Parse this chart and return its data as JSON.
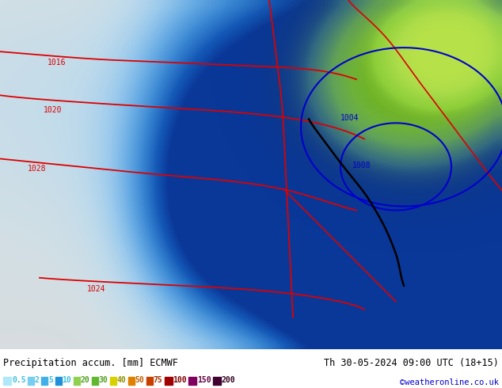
{
  "title_left": "Precipitation accum. [mm] ECMWF",
  "title_right": "Th 30-05-2024 09:00 UTC (18+15)",
  "credit": "©weatheronline.co.uk",
  "legend_values": [
    "0.5",
    "2",
    "5",
    "10",
    "20",
    "30",
    "40",
    "50",
    "75",
    "100",
    "150",
    "200"
  ],
  "legend_colors": [
    "#b0e8fa",
    "#78cef0",
    "#40b0e8",
    "#2090d8",
    "#90d050",
    "#60b830",
    "#d8d000",
    "#e08000",
    "#c84000",
    "#a00000",
    "#800060",
    "#400030"
  ],
  "legend_text_colors": [
    "#40c0e0",
    "#40c0e0",
    "#40c0e0",
    "#40c0e0",
    "#50a020",
    "#50a020",
    "#909000",
    "#c06000",
    "#a03000",
    "#800000",
    "#600040",
    "#300020"
  ],
  "figsize": [
    6.34,
    4.9
  ],
  "dpi": 100,
  "bottom_bar_bg": "#ffffff",
  "map_bg": "#d0d0d0",
  "land_color": "#d8d8d8",
  "sea_color": "#c8d8e8",
  "red_contour": "#dd0000",
  "blue_contour": "#0000cc",
  "black_front": "#000000",
  "precip_colors": {
    "very_light_blue": "#c8eeff",
    "light_blue": "#90d8f8",
    "mid_blue": "#50b8f0",
    "blue": "#2890d8",
    "dark_blue": "#1060b8",
    "light_green": "#b8f080",
    "yellow_green": "#d0e840",
    "green": "#78c830"
  }
}
